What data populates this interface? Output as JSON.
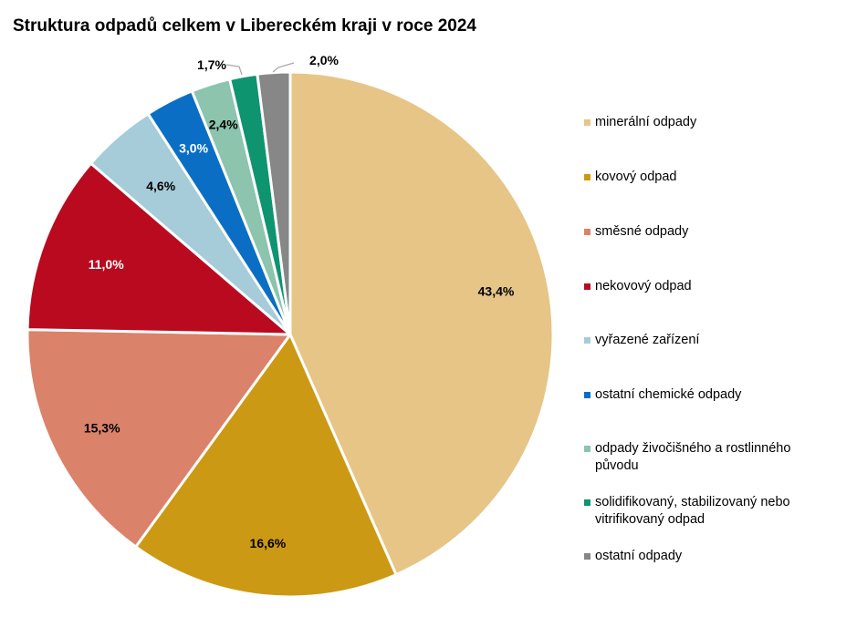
{
  "chart_data": {
    "type": "pie",
    "title": "Struktura odpadů celkem v Libereckém kraji v roce 2024",
    "start_angle_deg": 0,
    "direction": "clockwise",
    "legend_position": "right",
    "slices": [
      {
        "name": "minerální odpady",
        "value": 43.4,
        "label": "43,4%",
        "color": "#E6C587",
        "label_color": "#000000",
        "leader_line": false
      },
      {
        "name": "kovový odpad",
        "value": 16.6,
        "label": "16,6%",
        "color": "#CC9914",
        "label_color": "#000000",
        "leader_line": false
      },
      {
        "name": "směsné odpady",
        "value": 15.3,
        "label": "15,3%",
        "color": "#DB826A",
        "label_color": "#000000",
        "leader_line": false
      },
      {
        "name": "nekovový odpad",
        "value": 11.0,
        "label": "11,0%",
        "color": "#BA0A1F",
        "label_color": "#FFFFFF",
        "leader_line": false
      },
      {
        "name": "vyřazené zařízení",
        "value": 4.6,
        "label": "4,6%",
        "color": "#A5CCD8",
        "label_color": "#000000",
        "leader_line": false
      },
      {
        "name": "ostatní chemické odpady",
        "value": 3.0,
        "label": "3,0%",
        "color": "#0A6FC4",
        "label_color": "#FFFFFF",
        "leader_line": false
      },
      {
        "name": "odpady živočišného a rostlinného původu",
        "value": 2.4,
        "label": "2,4%",
        "color": "#8CC4AE",
        "label_color": "#000000",
        "leader_line": false
      },
      {
        "name": "solidifikovaný, stabilizovaný nebo vitrifikovaný odpad",
        "value": 1.7,
        "label": "1,7%",
        "color": "#0F9470",
        "label_color": "#000000",
        "leader_line": true
      },
      {
        "name": "ostatní odpady",
        "value": 2.0,
        "label": "2,0%",
        "color": "#878787",
        "label_color": "#000000",
        "leader_line": true
      }
    ],
    "legend": [
      {
        "line1": "minerální odpady",
        "line2": ""
      },
      {
        "line1": "kovový odpad",
        "line2": ""
      },
      {
        "line1": "směsné odpady",
        "line2": ""
      },
      {
        "line1": "nekovový odpad",
        "line2": ""
      },
      {
        "line1": "vyřazené zařízení",
        "line2": ""
      },
      {
        "line1": "ostatní chemické odpady",
        "line2": ""
      },
      {
        "line1": "odpady živočišného a rostlinného",
        "line2": "původu"
      },
      {
        "line1": "solidifikovaný, stabilizovaný nebo",
        "line2": "vitrifikovaný odpad"
      },
      {
        "line1": "ostatní odpady",
        "line2": ""
      }
    ]
  }
}
